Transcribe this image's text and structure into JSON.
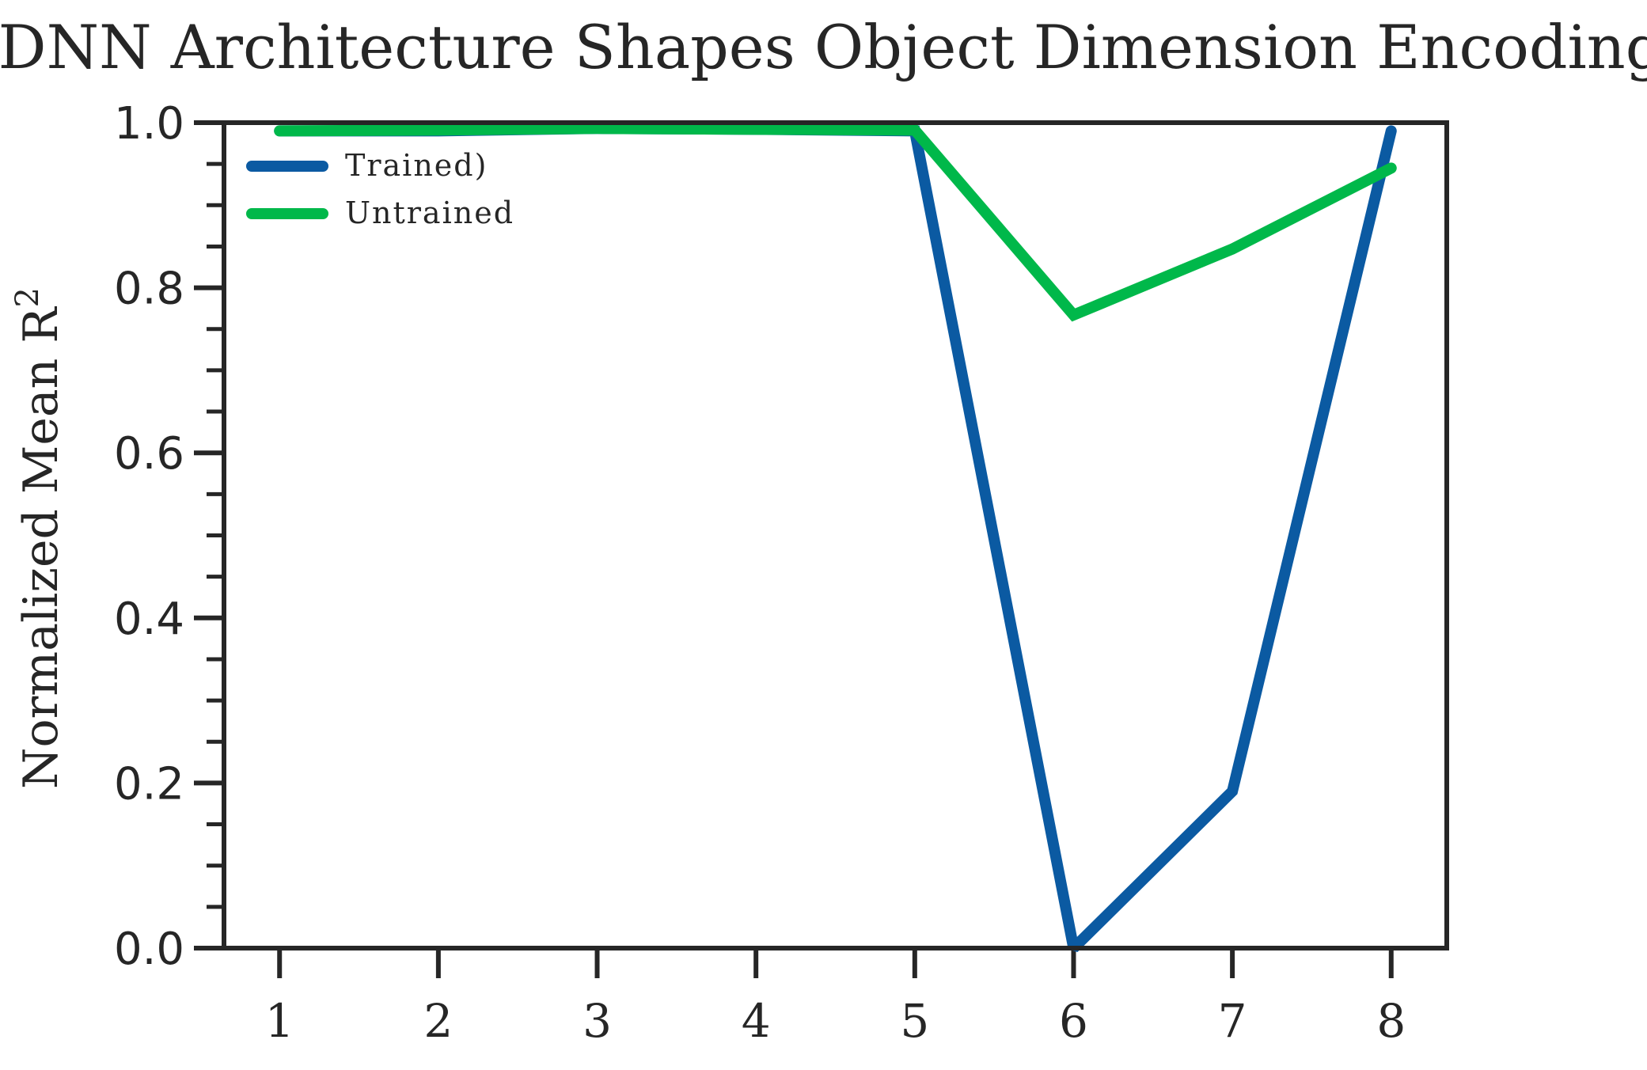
{
  "chart_data": {
    "type": "line",
    "title": "DNN Architecture Shapes Object Dimension Encoding",
    "xlabel": "",
    "ylabel": "Normalized Mean R",
    "ylabel_superscript": "2",
    "x": [
      1,
      2,
      3,
      4,
      5,
      6,
      7,
      8
    ],
    "xlim": [
      0.65,
      8.35
    ],
    "ylim": [
      0.0,
      1.0
    ],
    "yticks": [
      "0.0",
      "0.2",
      "0.4",
      "0.6",
      "0.8",
      "1.0"
    ],
    "xticks": [
      "1",
      "2",
      "3",
      "4",
      "5",
      "6",
      "7",
      "8"
    ],
    "grid": false,
    "legend_position": "upper-left",
    "series": [
      {
        "name": "Trained)",
        "color": "#0b5aa2",
        "values": [
          0.99,
          0.99,
          0.993,
          0.992,
          0.99,
          0.0,
          0.19,
          0.99
        ]
      },
      {
        "name": "Untrained",
        "color": "#00b84a",
        "values": [
          0.99,
          0.991,
          0.993,
          0.992,
          0.991,
          0.767,
          0.847,
          0.945
        ]
      }
    ]
  }
}
